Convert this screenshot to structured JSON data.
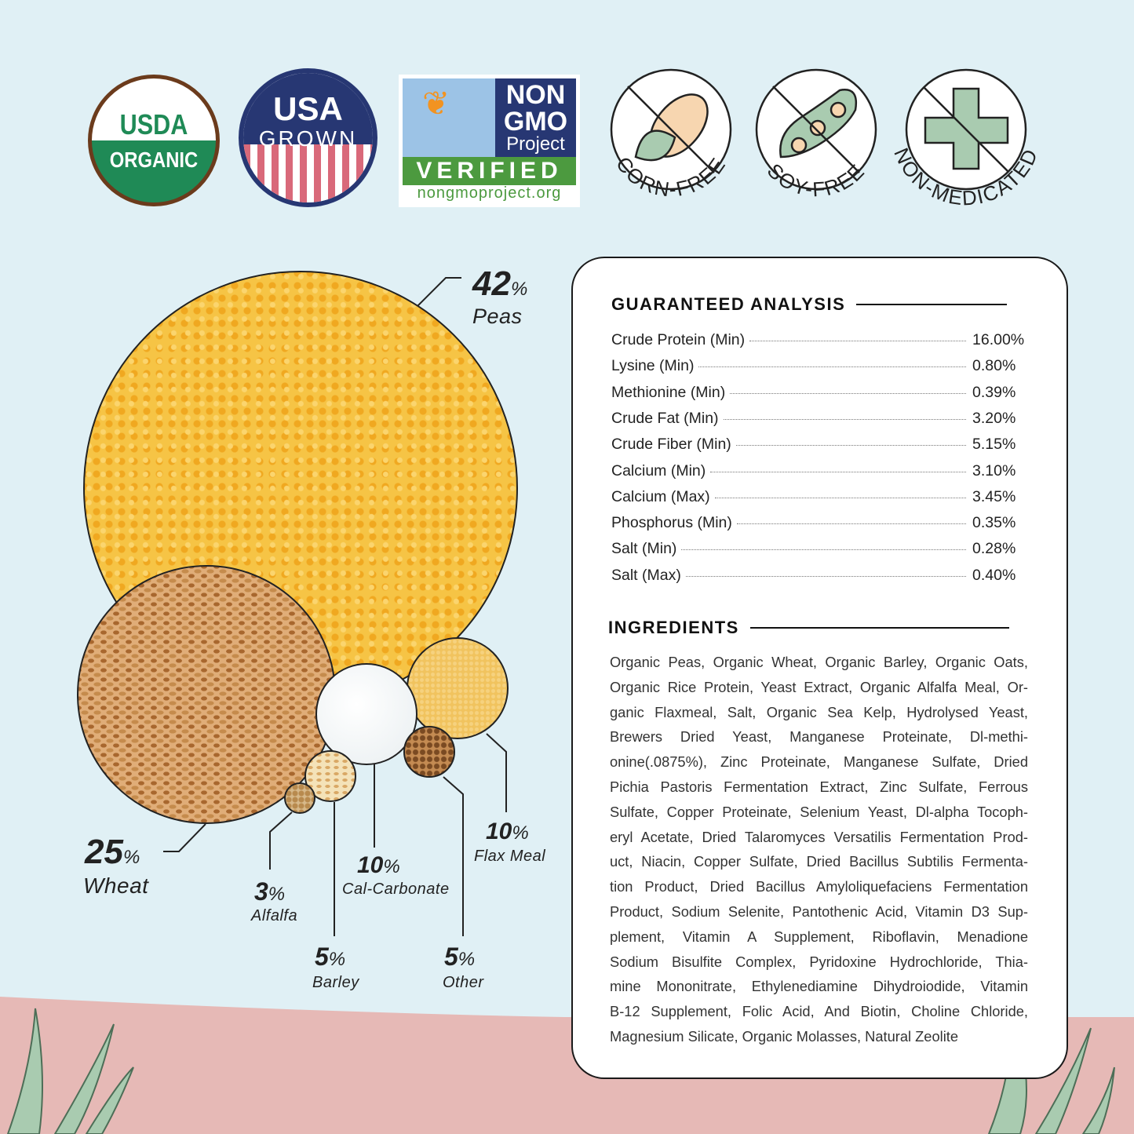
{
  "badges": {
    "usda": {
      "line1": "USDA",
      "line2": "ORGANIC"
    },
    "usa_grown": {
      "line1": "USA",
      "line2": "GROWN"
    },
    "non_gmo": {
      "line1": "NON",
      "line2": "GMO",
      "line3": "Project",
      "line4": "VERIFIED",
      "url": "nongmoproject.org"
    },
    "corn_free": "CORN-FREE",
    "soy_free": "SOY-FREE",
    "non_medicated": "NON-MEDICATED"
  },
  "composition": [
    {
      "pct": "42",
      "name": "Peas"
    },
    {
      "pct": "25",
      "name": "Wheat"
    },
    {
      "pct": "10",
      "name": "Flax Meal"
    },
    {
      "pct": "10",
      "name": "Cal-Carbonate"
    },
    {
      "pct": "3",
      "name": "Alfalfa"
    },
    {
      "pct": "5",
      "name": "Barley"
    },
    {
      "pct": "5",
      "name": "Other"
    }
  ],
  "percent_sign": "%",
  "analysis": {
    "title": "GUARANTEED ANALYSIS",
    "rows": [
      {
        "label": "Crude Protein (Min)",
        "value": "16.00%"
      },
      {
        "label": "Lysine (Min)",
        "value": "0.80%"
      },
      {
        "label": "Methionine (Min)",
        "value": "0.39%"
      },
      {
        "label": "Crude Fat (Min)",
        "value": "3.20%"
      },
      {
        "label": "Crude Fiber (Min)",
        "value": "5.15%"
      },
      {
        "label": "Calcium (Min)",
        "value": "3.10%"
      },
      {
        "label": "Calcium (Max)",
        "value": "3.45%"
      },
      {
        "label": "Phosphorus (Min)",
        "value": "0.35%"
      },
      {
        "label": "Salt (Min)",
        "value": "0.28%"
      },
      {
        "label": "Salt (Max)",
        "value": "0.40%"
      }
    ]
  },
  "ingredients": {
    "title": "INGREDIENTS",
    "lines": [
      "Organic Peas, Organic Wheat, Organic Barley, Organic Oats,",
      "Organic Rice Protein, Yeast Extract,  Organic Alfalfa Meal, Or-",
      "ganic Flaxmeal, Salt, Organic Sea Kelp, Hydrolysed Yeast,",
      "Brewers Dried Yeast, Manganese Proteinate, Dl-methi-",
      "onine(.0875%), Zinc Proteinate, Manganese Sulfate, Dried",
      "Pichia Pastoris Fermentation Extract, Zinc Sulfate, Ferrous",
      "Sulfate, Copper Proteinate, Selenium Yeast, Dl-alpha Tocoph-",
      "eryl Acetate, Dried Talaromyces Versatilis Fermentation Prod-",
      "uct, Niacin, Copper Sulfate, Dried Bacillus Subtilis Fermenta-",
      "tion Product, Dried Bacillus Amyloliquefaciens Fermentation",
      "Product, Sodium Selenite, Pantothenic Acid, Vitamin D3 Sup-",
      "plement, Vitamin A Supplement, Riboflavin, Menadione",
      "Sodium Bisulfite Complex, Pyridoxine Hydrochloride, Thia-",
      "mine Mononitrate, Ethylenediamine Dihydroiodide, Vitamin",
      "B-12 Supplement, Folic Acid, And Biotin, Choline Chloride,",
      "Magnesium Silicate, Organic Molasses, Natural Zeolite"
    ]
  },
  "colors": {
    "background": "#e0f0f5",
    "ground": "#e6b9b6",
    "grass": "#a9cbb0",
    "organic_green": "#1f8a56",
    "usda_brown": "#6b3b1c",
    "navy": "#273773",
    "stripe_red": "#d9697a",
    "gmo_green": "#4c9a3f"
  }
}
